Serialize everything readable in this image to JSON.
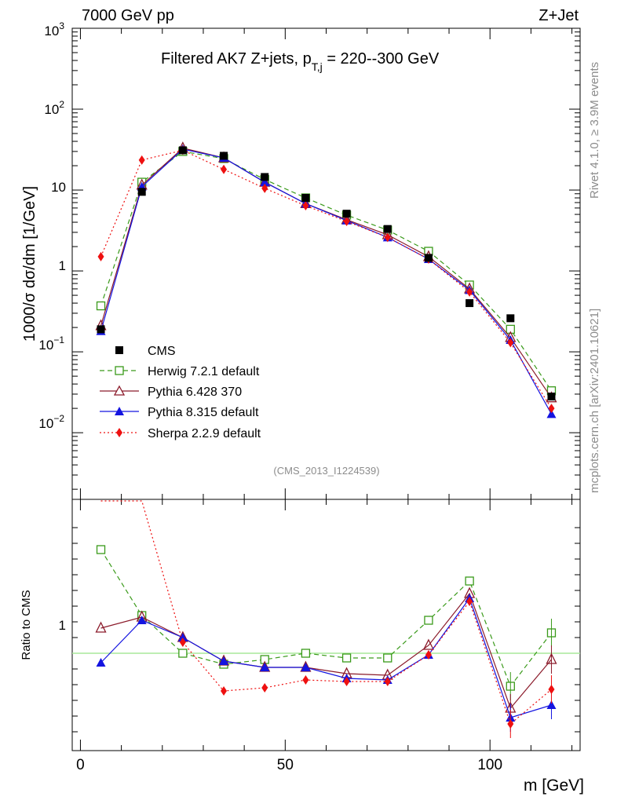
{
  "header": {
    "left": "7000 GeV pp",
    "right": "Z+Jet"
  },
  "chart_data": {
    "type": "line",
    "title_main": "Filtered AK7 Z+jets, p",
    "title_sub": "T,j",
    "title_tail": " = 220--300 GeV",
    "analysis_id": "(CMS_2013_I1224539)",
    "side_label_top": "Rivet 4.1.0, ≥ 3.9M events",
    "side_label_bottom": "mcplots.cern.ch [arXiv:2401.10621]",
    "ylabel_main": "1000/σ  dσ/dm [1/GeV]",
    "ylabel_ratio": "Ratio to CMS",
    "xlabel": "m [GeV]",
    "xlim": [
      -2,
      122
    ],
    "ylim_main": [
      0.0015,
      1000
    ],
    "ylim_ratio": [
      0.38,
      1.98
    ],
    "x_ticks": [
      0,
      50,
      100
    ],
    "x_tick_labels": [
      "0",
      "50",
      "100"
    ],
    "y_tick_labels": {
      "d1000": "10",
      "d1000_exp": "3",
      "d100": "10",
      "d100_exp": "2",
      "d10": "10",
      "d1": "1",
      "dm1": "10",
      "dm1_exp": "−1",
      "dm2": "10",
      "dm2_exp": "−2"
    },
    "ratio_tick_label": "1",
    "x": [
      5,
      15,
      25,
      35,
      45,
      55,
      65,
      75,
      85,
      95,
      105,
      115
    ],
    "data": {
      "name": "CMS",
      "values": [
        0.19,
        9.5,
        31,
        26.5,
        14.5,
        8.0,
        5.1,
        3.3,
        1.45,
        0.4,
        0.26,
        0.028
      ]
    },
    "series": [
      {
        "name": "Herwig 7.2.1 default",
        "color": "#3a9a1a",
        "dash": "6,4",
        "marker": "open-square",
        "values": [
          0.37,
          12.5,
          30,
          24.5,
          13.5,
          8.0,
          4.9,
          3.2,
          1.75,
          0.67,
          0.19,
          0.033
        ],
        "ratio": [
          1.66,
          1.24,
          1.0,
          0.93,
          0.96,
          1.0,
          0.97,
          0.97,
          1.21,
          1.46,
          0.79,
          1.13
        ]
      },
      {
        "name": "Pythia 6.428 370",
        "color": "#8b1a2a",
        "dash": "",
        "marker": "open-triangle",
        "values": [
          0.21,
          11.5,
          33,
          25,
          12.5,
          6.8,
          4.3,
          2.8,
          1.5,
          0.6,
          0.15,
          0.027
        ],
        "ratio": [
          1.16,
          1.23,
          1.1,
          0.95,
          0.91,
          0.91,
          0.87,
          0.86,
          1.05,
          1.38,
          0.65,
          0.96
        ]
      },
      {
        "name": "Pythia 8.315 default",
        "color": "#1414e0",
        "dash": "",
        "marker": "filled-triangle",
        "values": [
          0.18,
          11,
          32,
          25,
          12.5,
          6.8,
          4.2,
          2.6,
          1.4,
          0.58,
          0.14,
          0.017
        ],
        "ratio": [
          0.94,
          1.21,
          1.1,
          0.95,
          0.91,
          0.91,
          0.84,
          0.83,
          0.99,
          1.35,
          0.59,
          0.67
        ]
      },
      {
        "name": "Sherpa 2.2.9 default",
        "color": "#ee1010",
        "dash": "2,3",
        "marker": "filled-diamond",
        "values": [
          1.5,
          23.5,
          31,
          18,
          10.5,
          6.4,
          4.1,
          2.6,
          1.4,
          0.55,
          0.13,
          0.02
        ],
        "ratio": [
          1.98,
          1.98,
          1.07,
          0.76,
          0.78,
          0.83,
          0.82,
          0.82,
          0.99,
          1.33,
          0.55,
          0.77
        ]
      }
    ]
  }
}
